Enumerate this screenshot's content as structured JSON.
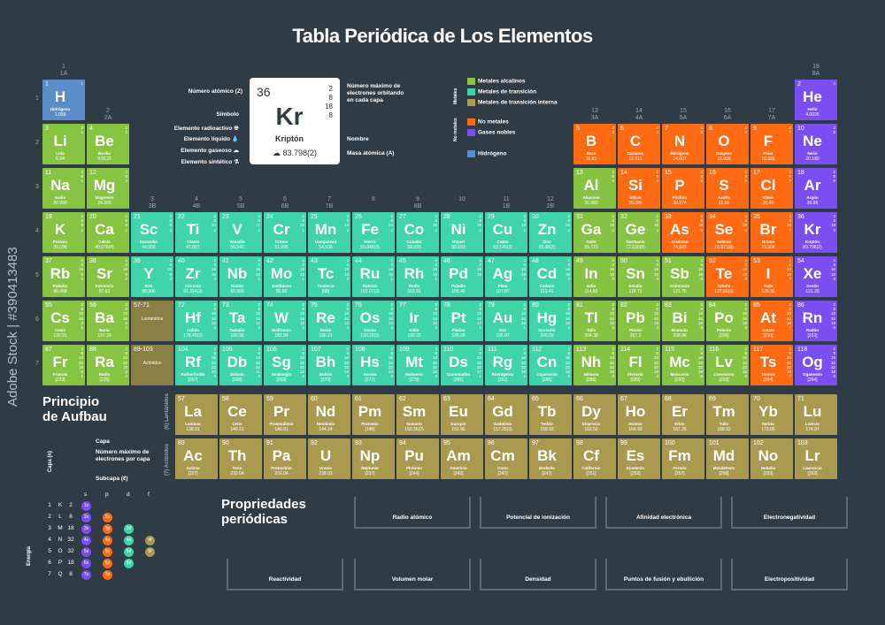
{
  "title": "Tabla Periódica de Los Elementos",
  "group_labels": [
    {
      "n": "1",
      "a": "1A"
    },
    {
      "n": "2",
      "a": "2A"
    },
    {
      "n": "3",
      "a": "3B"
    },
    {
      "n": "4",
      "a": "4B"
    },
    {
      "n": "5",
      "a": "5B"
    },
    {
      "n": "6",
      "a": "6B"
    },
    {
      "n": "7",
      "a": "7B"
    },
    {
      "n": "8",
      "a": ""
    },
    {
      "n": "9",
      "a": "8B"
    },
    {
      "n": "10",
      "a": ""
    },
    {
      "n": "11",
      "a": "1B"
    },
    {
      "n": "12",
      "a": "2B"
    },
    {
      "n": "13",
      "a": "3A"
    },
    {
      "n": "14",
      "a": "4A"
    },
    {
      "n": "15",
      "a": "5A"
    },
    {
      "n": "16",
      "a": "6A"
    },
    {
      "n": "17",
      "a": "7A"
    },
    {
      "n": "18",
      "a": "8A"
    }
  ],
  "periods": [
    "1",
    "2",
    "3",
    "4",
    "5",
    "6",
    "7"
  ],
  "key": {
    "number": "36",
    "symbol": "Kr",
    "name": "Kriptón",
    "mass": "83.798(2)",
    "shells": [
      "2",
      "8",
      "18",
      "8"
    ],
    "labels_left": [
      "Número atómico (Z)",
      "Símbolo",
      "Elemento radioactivo",
      "Elemento líquido",
      "Elemento gaseoso",
      "Elemento sintético"
    ],
    "labels_right": [
      "Número máximo de electrones orbitando en cada capa",
      "Nombre",
      "Masa atómica (A)"
    ]
  },
  "legend": {
    "metals_caption": "Metales",
    "nonmetals_caption": "No metales",
    "items": [
      {
        "label": "Metales alcalinos",
        "color": "#87c442"
      },
      {
        "label": "Metales de transición",
        "color": "#3fd5a8"
      },
      {
        "label": "Metales de transición interna",
        "color": "#aa9a4f"
      },
      {
        "label": "No metales",
        "color": "#ff6a13"
      },
      {
        "label": "Gases nobles",
        "color": "#7a4ef0"
      },
      {
        "label": "Hidrógeno",
        "color": "#5b8dc8"
      }
    ]
  },
  "elements": [
    [
      "1",
      "H",
      "Hidrógeno",
      "1.008",
      "hyd",
      1,
      1,
      "1"
    ],
    [
      "2",
      "He",
      "Helio",
      "4.0026",
      "nob",
      18,
      1,
      "2"
    ],
    [
      "3",
      "Li",
      "Litio",
      "6.94",
      "alk",
      1,
      2,
      "2 1"
    ],
    [
      "4",
      "Be",
      "Berilio",
      "9.0122",
      "alk",
      2,
      2,
      "2 2"
    ],
    [
      "5",
      "B",
      "Boro",
      "10.81",
      "non",
      13,
      2,
      "2 3"
    ],
    [
      "6",
      "C",
      "Carbono",
      "12.011",
      "non",
      14,
      2,
      "2 4"
    ],
    [
      "7",
      "N",
      "Nitrógeno",
      "14.007",
      "non",
      15,
      2,
      "2 5"
    ],
    [
      "8",
      "O",
      "Oxígeno",
      "15.999",
      "non",
      16,
      2,
      "2 6"
    ],
    [
      "9",
      "F",
      "Flúor",
      "18.998",
      "non",
      17,
      2,
      "2 7"
    ],
    [
      "10",
      "Ne",
      "Neón",
      "20.180",
      "nob",
      18,
      2,
      "2 8"
    ],
    [
      "11",
      "Na",
      "Sodio",
      "22.990",
      "alk",
      1,
      3,
      "2 8 1"
    ],
    [
      "12",
      "Mg",
      "Magnesio",
      "24.305",
      "alk",
      2,
      3,
      "2 8 2"
    ],
    [
      "13",
      "Al",
      "Aluminio",
      "26.982",
      "pst",
      13,
      3,
      "2 8 3"
    ],
    [
      "14",
      "Si",
      "Silicio",
      "28.085",
      "non",
      14,
      3,
      "2 8 4"
    ],
    [
      "15",
      "P",
      "Fósforo",
      "30.974",
      "non",
      15,
      3,
      "2 8 5"
    ],
    [
      "16",
      "S",
      "Azufre",
      "32.06",
      "non",
      16,
      3,
      "2 8 6"
    ],
    [
      "17",
      "Cl",
      "Cloro",
      "35.45",
      "non",
      17,
      3,
      "2 8 7"
    ],
    [
      "18",
      "Ar",
      "Argón",
      "39.95",
      "nob",
      18,
      3,
      "2 8 8"
    ],
    [
      "19",
      "K",
      "Potasio",
      "39.098",
      "alk",
      1,
      4,
      "2 8 8 1"
    ],
    [
      "20",
      "Ca",
      "Calcio",
      "40.078(4)",
      "alk",
      2,
      4,
      "2 8 8 2"
    ],
    [
      "21",
      "Sc",
      "Escandio",
      "44.956",
      "trn",
      3,
      4,
      "2 8 9 2"
    ],
    [
      "22",
      "Ti",
      "Titanio",
      "47.867",
      "trn",
      4,
      4,
      "2 8 10 2"
    ],
    [
      "23",
      "V",
      "Vanadio",
      "50.942",
      "trn",
      5,
      4,
      "2 8 11 2"
    ],
    [
      "24",
      "Cr",
      "Cromo",
      "51.996",
      "trn",
      6,
      4,
      "2 8 13 1"
    ],
    [
      "25",
      "Mn",
      "Manganeso",
      "54.938",
      "trn",
      7,
      4,
      "2 8 13 2"
    ],
    [
      "26",
      "Fe",
      "Hierro",
      "55.845(2)",
      "trn",
      8,
      4,
      "2 8 14 2"
    ],
    [
      "27",
      "Co",
      "Cobalto",
      "58.933",
      "trn",
      9,
      4,
      "2 8 15 2"
    ],
    [
      "28",
      "Ni",
      "Níquel",
      "58.693",
      "trn",
      10,
      4,
      "2 8 16 2"
    ],
    [
      "29",
      "Cu",
      "Cobre",
      "63.546(3)",
      "trn",
      11,
      4,
      "2 8 18 1"
    ],
    [
      "30",
      "Zn",
      "Zinc",
      "65.38(2)",
      "trn",
      12,
      4,
      "2 8 18 2"
    ],
    [
      "31",
      "Ga",
      "Galio",
      "69.723",
      "pst",
      13,
      4,
      "2 8 18 3"
    ],
    [
      "32",
      "Ge",
      "Germanio",
      "72.630(8)",
      "pst",
      14,
      4,
      "2 8 18 4"
    ],
    [
      "33",
      "As",
      "Arsénico",
      "74.922",
      "non",
      15,
      4,
      "2 8 18 5"
    ],
    [
      "34",
      "Se",
      "Selenio",
      "78.971(8)",
      "non",
      16,
      4,
      "2 8 18 6"
    ],
    [
      "35",
      "Br",
      "Bromo",
      "79.904",
      "non",
      17,
      4,
      "2 8 18 7"
    ],
    [
      "36",
      "Kr",
      "Kriptón",
      "83.798(2)",
      "nob",
      18,
      4,
      "2 8 18 8"
    ],
    [
      "37",
      "Rb",
      "Rubidio",
      "85.468",
      "alk",
      1,
      5,
      "2 8 18 8 1"
    ],
    [
      "38",
      "Sr",
      "Estroncio",
      "87.62",
      "alk",
      2,
      5,
      "2 8 18 8 2"
    ],
    [
      "39",
      "Y",
      "Itrio",
      "88.906",
      "trn",
      3,
      5,
      "2 8 18 9 2"
    ],
    [
      "40",
      "Zr",
      "Circonio",
      "91.224(2)",
      "trn",
      4,
      5,
      "2 8 18 10 2"
    ],
    [
      "41",
      "Nb",
      "Niobio",
      "92.906",
      "trn",
      5,
      5,
      "2 8 18 12 1"
    ],
    [
      "42",
      "Mo",
      "Molibdeno",
      "95.95",
      "trn",
      6,
      5,
      "2 8 18 13 1"
    ],
    [
      "43",
      "Tc",
      "Tecnecio",
      "[98]",
      "trn",
      7,
      5,
      "2 8 18 13 2"
    ],
    [
      "44",
      "Ru",
      "Rutenio",
      "101.07(2)",
      "trn",
      8,
      5,
      "2 8 18 15 1"
    ],
    [
      "45",
      "Rh",
      "Rodio",
      "102.91",
      "trn",
      9,
      5,
      "2 8 18 16 1"
    ],
    [
      "46",
      "Pd",
      "Paladio",
      "106.42",
      "trn",
      10,
      5,
      "2 8 18 18"
    ],
    [
      "47",
      "Ag",
      "Plata",
      "107.87",
      "trn",
      11,
      5,
      "2 8 18 18 1"
    ],
    [
      "48",
      "Cd",
      "Cadmio",
      "112.41",
      "trn",
      12,
      5,
      "2 8 18 18 2"
    ],
    [
      "49",
      "In",
      "Indio",
      "114.82",
      "pst",
      13,
      5,
      "2 8 18 18 3"
    ],
    [
      "50",
      "Sn",
      "Estaño",
      "118.71",
      "pst",
      14,
      5,
      "2 8 18 18 4"
    ],
    [
      "51",
      "Sb",
      "Antimonio",
      "121.76",
      "pst",
      15,
      5,
      "2 8 18 18 5"
    ],
    [
      "52",
      "Te",
      "Telurio",
      "127.60(3)",
      "non",
      16,
      5,
      "2 8 18 18 6"
    ],
    [
      "53",
      "I",
      "Yodo",
      "126.90",
      "non",
      17,
      5,
      "2 8 18 18 7"
    ],
    [
      "54",
      "Xe",
      "Xenón",
      "131.29",
      "nob",
      18,
      5,
      "2 8 18 18 8"
    ],
    [
      "55",
      "Cs",
      "Cesio",
      "132.91",
      "alk",
      1,
      6,
      "2 8 18 18 8 1"
    ],
    [
      "56",
      "Ba",
      "Bario",
      "137.33",
      "alk",
      2,
      6,
      "2 8 18 18 8 2"
    ],
    [
      "72",
      "Hf",
      "Hafnio",
      "178.49(2)",
      "trn",
      4,
      6,
      "2 8 18 32 10 2"
    ],
    [
      "73",
      "Ta",
      "Tantalio",
      "180.95",
      "trn",
      5,
      6,
      "2 8 18 32 11 2"
    ],
    [
      "74",
      "W",
      "Wolframio",
      "183.84",
      "trn",
      6,
      6,
      "2 8 18 32 12 2"
    ],
    [
      "75",
      "Re",
      "Renio",
      "186.21",
      "trn",
      7,
      6,
      "2 8 18 32 13 2"
    ],
    [
      "76",
      "Os",
      "Osmio",
      "190.23(3)",
      "trn",
      8,
      6,
      "2 8 18 32 14 2"
    ],
    [
      "77",
      "Ir",
      "Iridio",
      "192.22",
      "trn",
      9,
      6,
      "2 8 18 32 15 2"
    ],
    [
      "78",
      "Pt",
      "Platino",
      "195.08",
      "trn",
      10,
      6,
      "2 8 18 32 17 1"
    ],
    [
      "79",
      "Au",
      "Oro",
      "196.97",
      "trn",
      11,
      6,
      "2 8 18 32 18 1"
    ],
    [
      "80",
      "Hg",
      "Mercurio",
      "200.59",
      "trn",
      12,
      6,
      "2 8 18 32 18 2"
    ],
    [
      "81",
      "Tl",
      "Talio",
      "204.38",
      "pst",
      13,
      6,
      "2 8 18 32 18 3"
    ],
    [
      "82",
      "Pb",
      "Plomo",
      "207.2",
      "pst",
      14,
      6,
      "2 8 18 32 18 4"
    ],
    [
      "83",
      "Bi",
      "Bismuto",
      "208.98",
      "pst",
      15,
      6,
      "2 8 18 32 18 5"
    ],
    [
      "84",
      "Po",
      "Polonio",
      "[209]",
      "pst",
      16,
      6,
      "2 8 18 32 18 6"
    ],
    [
      "85",
      "At",
      "Astato",
      "[210]",
      "non",
      17,
      6,
      "2 8 18 32 18 7"
    ],
    [
      "86",
      "Rn",
      "Radón",
      "[222]",
      "nob",
      18,
      6,
      "2 8 18 32 18 8"
    ],
    [
      "87",
      "Fr",
      "Francio",
      "[223]",
      "alk",
      1,
      7,
      "2 8 18 32 18 8 1"
    ],
    [
      "88",
      "Ra",
      "Radio",
      "[226]",
      "alk",
      2,
      7,
      "2 8 18 32 18 8 2"
    ],
    [
      "104",
      "Rf",
      "Rutherfordio",
      "[267]",
      "trn",
      4,
      7,
      "2 8 18 32 32 10 2"
    ],
    [
      "105",
      "Db",
      "Dubnio",
      "[268]",
      "trn",
      5,
      7,
      "2 8 18 32 32 11 2"
    ],
    [
      "106",
      "Sg",
      "Seaborgio",
      "[269]",
      "trn",
      6,
      7,
      "2 8 18 32 32 12 2"
    ],
    [
      "107",
      "Bh",
      "Bohrio",
      "[270]",
      "trn",
      7,
      7,
      "2 8 18 32 32 13 2"
    ],
    [
      "108",
      "Hs",
      "Hassio",
      "[277]",
      "trn",
      8,
      7,
      "2 8 18 32 32 14 2"
    ],
    [
      "109",
      "Mt",
      "Meitnerio",
      "[278]",
      "trn",
      9,
      7,
      "2 8 18 32 32 15 2"
    ],
    [
      "110",
      "Ds",
      "Darmstadtio",
      "[281]",
      "trn",
      10,
      7,
      "2 8 18 32 32 17 1"
    ],
    [
      "111",
      "Rg",
      "Roentgenio",
      "[282]",
      "trn",
      11,
      7,
      "2 8 18 32 32 18 1"
    ],
    [
      "112",
      "Cn",
      "Copernicio",
      "[285]",
      "trn",
      12,
      7,
      "2 8 18 32 32 18 2"
    ],
    [
      "113",
      "Nh",
      "Nihonio",
      "[286]",
      "pst",
      13,
      7,
      "2 8 18 32 32 18 3"
    ],
    [
      "114",
      "Fl",
      "Flerovio",
      "[289]",
      "pst",
      14,
      7,
      "2 8 18 32 32 18 4"
    ],
    [
      "115",
      "Mc",
      "Moscovio",
      "[290]",
      "pst",
      15,
      7,
      "2 8 18 32 32 18 5"
    ],
    [
      "116",
      "Lv",
      "Livermorio",
      "[293]",
      "pst",
      16,
      7,
      "2 8 18 32 32 18 6"
    ],
    [
      "117",
      "Ts",
      "Teneso",
      "[294]",
      "non",
      17,
      7,
      "2 8 18 32 32 18 7"
    ],
    [
      "118",
      "Og",
      "Oganesón",
      "[294]",
      "nob",
      18,
      7,
      "2 8 18 32 32 18 8"
    ]
  ],
  "placeholders": [
    {
      "num": "57-71",
      "name": "Lantánidos",
      "col": 3,
      "row": 6
    },
    {
      "num": "89-103",
      "name": "Actínidos",
      "col": 3,
      "row": 7
    }
  ],
  "series_captions": [
    "(6) Lantánidos",
    "(7) Actínidos"
  ],
  "lanthanides": [
    [
      "57",
      "La",
      "Lantano",
      "138.91"
    ],
    [
      "58",
      "Ce",
      "Cerio",
      "140.12"
    ],
    [
      "59",
      "Pr",
      "Praseodimio",
      "140.91"
    ],
    [
      "60",
      "Nd",
      "Neodimio",
      "144.24"
    ],
    [
      "61",
      "Pm",
      "Prometio",
      "[145]"
    ],
    [
      "62",
      "Sm",
      "Samario",
      "150.36(2)"
    ],
    [
      "63",
      "Eu",
      "Europio",
      "151.96"
    ],
    [
      "64",
      "Gd",
      "Gadolinio",
      "157.25(3)"
    ],
    [
      "65",
      "Tb",
      "Terbio",
      "158.93"
    ],
    [
      "66",
      "Dy",
      "Disprosio",
      "162.50"
    ],
    [
      "67",
      "Ho",
      "Holmio",
      "164.93"
    ],
    [
      "68",
      "Er",
      "Erbio",
      "167.26"
    ],
    [
      "69",
      "Tm",
      "Tulio",
      "168.93"
    ],
    [
      "70",
      "Yb",
      "Iterbio",
      "173.05"
    ],
    [
      "71",
      "Lu",
      "Lutecio",
      "174.97"
    ]
  ],
  "actinides": [
    [
      "89",
      "Ac",
      "Actinio",
      "[227]"
    ],
    [
      "90",
      "Th",
      "Torio",
      "232.04"
    ],
    [
      "91",
      "Pa",
      "Protactinio",
      "231.04"
    ],
    [
      "92",
      "U",
      "Uranio",
      "238.03"
    ],
    [
      "93",
      "Np",
      "Neptunio",
      "[237]"
    ],
    [
      "94",
      "Pu",
      "Plutonio",
      "[244]"
    ],
    [
      "95",
      "Am",
      "Americio",
      "[243]"
    ],
    [
      "96",
      "Cm",
      "Curio",
      "[247]"
    ],
    [
      "97",
      "Bk",
      "Berkelio",
      "[247]"
    ],
    [
      "98",
      "Cf",
      "Californio",
      "[251]"
    ],
    [
      "99",
      "Es",
      "Einstenio",
      "[252]"
    ],
    [
      "100",
      "Fm",
      "Fermio",
      "[257]"
    ],
    [
      "101",
      "Md",
      "Mendelevio",
      "[258]"
    ],
    [
      "102",
      "No",
      "Nobelio",
      "[259]"
    ],
    [
      "103",
      "Lr",
      "Laurencio",
      "[262]"
    ]
  ],
  "aufbau": {
    "title_line1": "Principio",
    "title_line2": "de Aufbau",
    "capa_label": "Capa",
    "max_e_label": "Número máximo de electrones por capa",
    "subcapa_label": "Subcapa (ℓ)",
    "axis_capa": "Capa (n)",
    "axis_energia": "Energía",
    "rows": [
      [
        "1",
        "K",
        "2"
      ],
      [
        "2",
        "L",
        "8"
      ],
      [
        "3",
        "M",
        "18"
      ],
      [
        "4",
        "N",
        "32"
      ],
      [
        "5",
        "O",
        "32"
      ],
      [
        "6",
        "P",
        "18"
      ],
      [
        "7",
        "Q",
        "8"
      ]
    ],
    "subshells": [
      "s",
      "p",
      "d",
      "f"
    ],
    "orbitals": [
      "1s",
      "2s",
      "2p",
      "3s",
      "3p",
      "3d",
      "4s",
      "4p",
      "4d",
      "4f",
      "5s",
      "5p",
      "5d",
      "5f",
      "6s",
      "6p",
      "6d",
      "7s",
      "7p"
    ]
  },
  "properties": {
    "title_line1": "Propriedades",
    "title_line2": "periódicas",
    "items": [
      "Radio atómico",
      "Potencial de ionización",
      "Afinidad electrónica",
      "Electronegatividad",
      "Reactividad",
      "Volumen molar",
      "Densidad",
      "Puntos de fusión y ebullición",
      "Electropositividad"
    ]
  },
  "watermark": "Adobe Stock | #390413483"
}
